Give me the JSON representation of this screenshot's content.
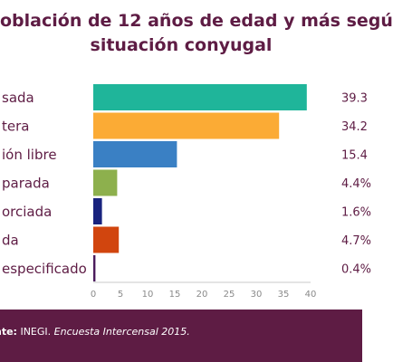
{
  "title": {
    "line1": "oblación de 12 años de edad y más segú",
    "line2": "situación conyugal"
  },
  "chart_data": {
    "type": "bar",
    "orientation": "horizontal",
    "title": "oblación de 12 años de edad y más segú situación conyugal",
    "categories": [
      "sada",
      "tera",
      "ión libre",
      "parada",
      "orciada",
      "da",
      "especificado"
    ],
    "values": [
      39.3,
      34.2,
      15.4,
      4.4,
      1.6,
      4.7,
      0.4
    ],
    "value_labels": [
      "39.3",
      "34.2",
      "15.4",
      "4.4%",
      "1.6%",
      "4.7%",
      "0.4%"
    ],
    "colors": [
      "#1fb59a",
      "#fbab35",
      "#3a80c4",
      "#8db04d",
      "#18237e",
      "#d1450e",
      "#4b1c5c"
    ],
    "xticks": [
      0,
      5,
      10,
      15,
      20,
      25,
      30,
      35,
      40
    ],
    "xlim": [
      0,
      40
    ],
    "grid": false,
    "legend": "none"
  },
  "footer": {
    "label": "nte:",
    "org": " INEGI. ",
    "publication": "Encuesta Intercensal 2015."
  }
}
